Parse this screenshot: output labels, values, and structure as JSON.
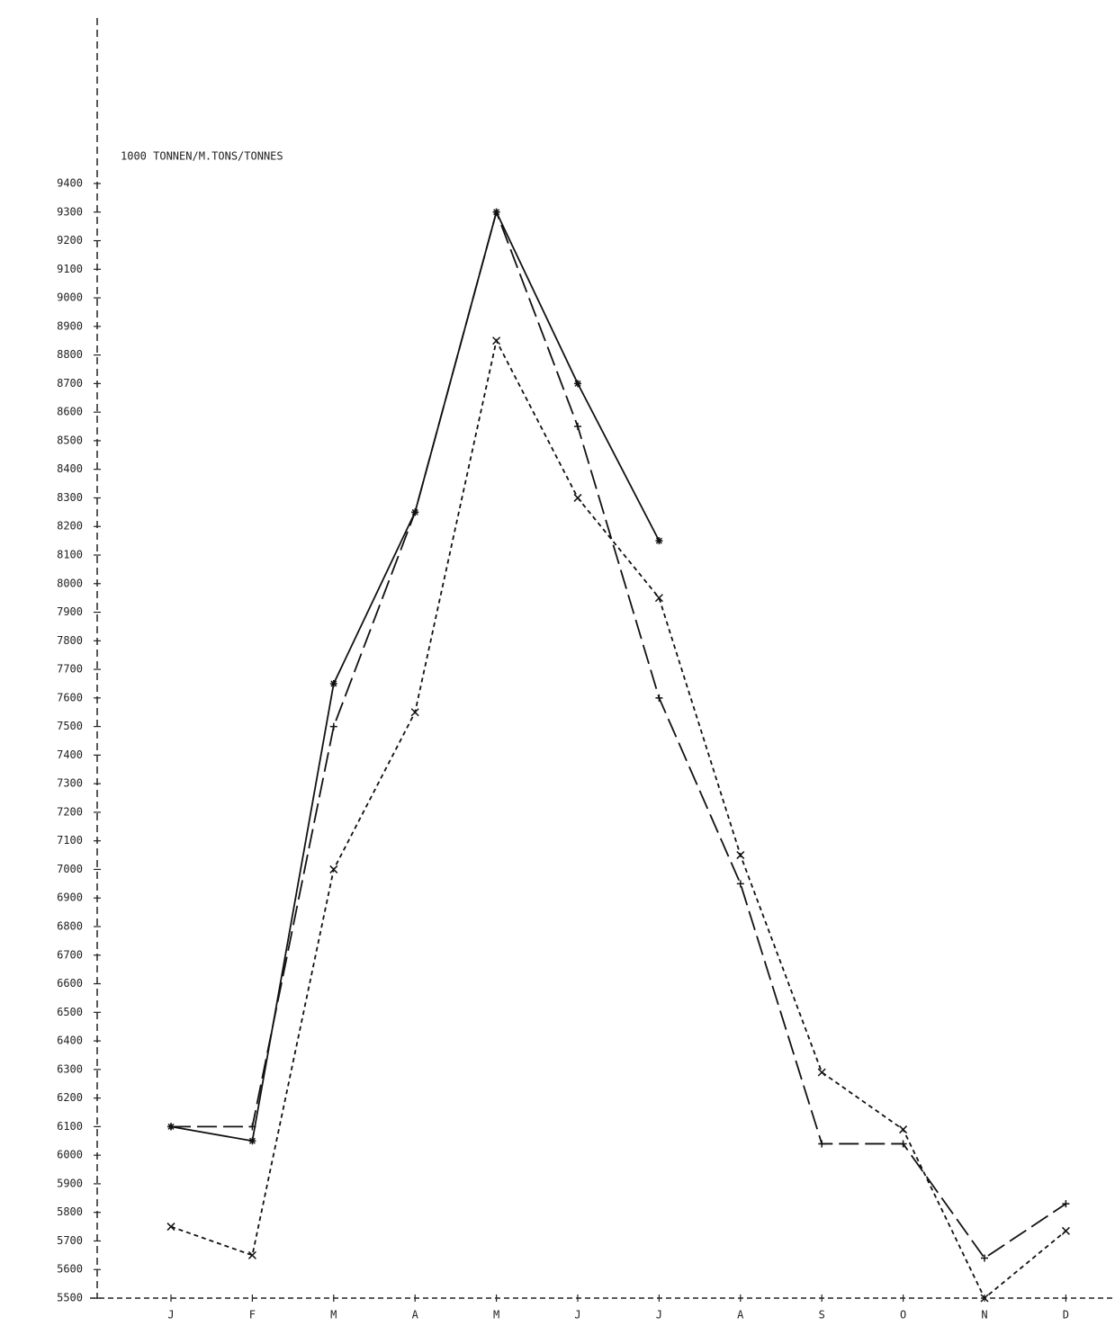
{
  "chart_data": {
    "type": "line",
    "y_label": "1000 TONNEN/M.TONS/TONNES",
    "categories": [
      "J",
      "F",
      "M",
      "A",
      "M",
      "J",
      "J",
      "A",
      "S",
      "O",
      "N",
      "D"
    ],
    "series": [
      {
        "color": "#111111",
        "dash": "solid",
        "marker": "star",
        "values": [
          6100,
          6050,
          7650,
          8250,
          9300,
          8700,
          8150,
          null,
          null,
          null,
          null,
          null
        ]
      },
      {
        "color": "#111111",
        "dash": "long",
        "marker": "plus",
        "values": [
          6100,
          6100,
          7500,
          8250,
          9300,
          8550,
          7600,
          6950,
          6040,
          6040,
          5640,
          5830
        ]
      },
      {
        "color": "#111111",
        "dash": "short",
        "marker": "cross",
        "values": [
          5750,
          5650,
          7000,
          7550,
          8850,
          8300,
          7950,
          7050,
          6290,
          6090,
          5500,
          5735
        ]
      }
    ],
    "ylim": [
      5500,
      9400
    ],
    "yticks": [
      5500,
      5600,
      5700,
      5800,
      5900,
      6000,
      6100,
      6200,
      6300,
      6400,
      6500,
      6600,
      6700,
      6800,
      6900,
      7000,
      7100,
      7200,
      7300,
      7400,
      7500,
      7600,
      7700,
      7800,
      7900,
      8000,
      8100,
      8200,
      8300,
      8400,
      8500,
      8600,
      8700,
      8800,
      8900,
      9000,
      9100,
      9200,
      9300,
      9400
    ]
  }
}
